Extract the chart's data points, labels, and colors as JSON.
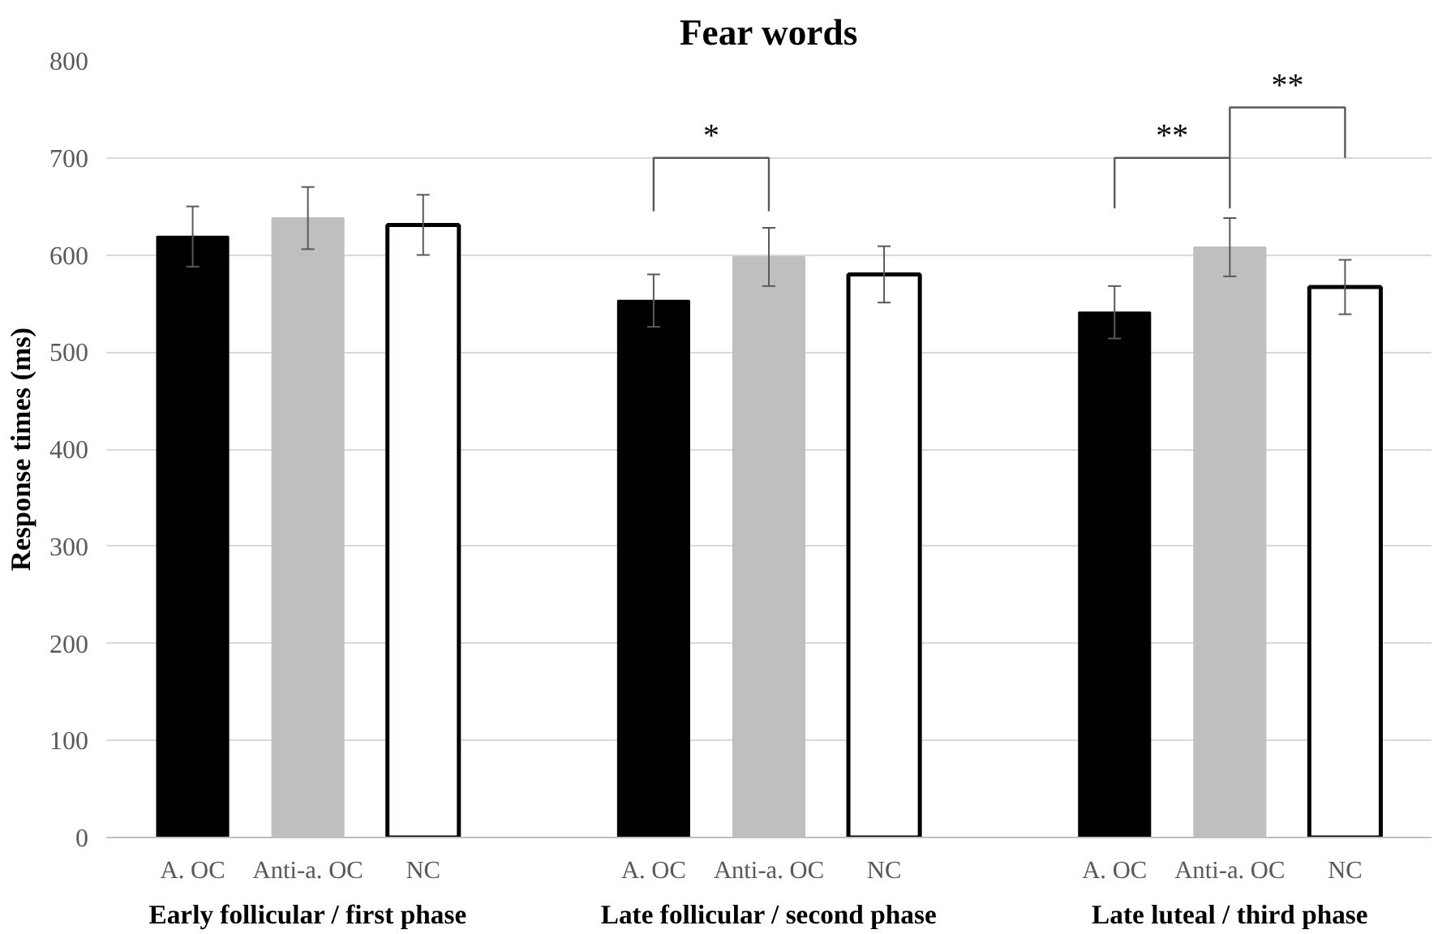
{
  "chart_data": {
    "type": "bar",
    "title": "Fear words",
    "ylabel": "Response times (ms)",
    "categories": [
      "Early follicular / first phase",
      "Late follicular / second phase",
      "Late luteal / third phase"
    ],
    "series": [
      {
        "name": "A. OC",
        "color": "#000000",
        "values": [
          619,
          553,
          541
        ],
        "errors": [
          31,
          27,
          27
        ]
      },
      {
        "name": "Anti-a. OC",
        "color": "#bfbfbf",
        "values": [
          638,
          598,
          608
        ],
        "errors": [
          32,
          30,
          30
        ]
      },
      {
        "name": "NC",
        "color": "#ffffff",
        "values": [
          631,
          580,
          567
        ],
        "errors": [
          31,
          29,
          28
        ]
      }
    ],
    "ylim": [
      0,
      800
    ],
    "yticks": [
      0,
      100,
      200,
      300,
      400,
      500,
      600,
      700,
      800
    ],
    "grid": "y",
    "annotations": [
      "*",
      "**",
      "**"
    ]
  }
}
